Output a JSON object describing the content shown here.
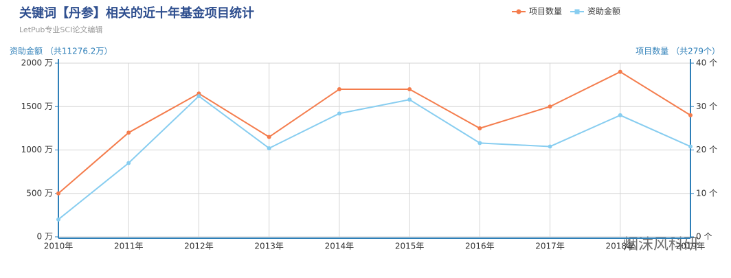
{
  "chart_data": {
    "type": "line",
    "title": "关键词【丹参】相关的近十年基金项目统计",
    "subtitle": "LetPub专业SCI论文编辑",
    "y_axis_label": "资助金额 （共11276.2万）",
    "y2_axis_label": "项目数量 （共279个）",
    "categories": [
      "2010年",
      "2011年",
      "2012年",
      "2013年",
      "2014年",
      "2015年",
      "2016年",
      "2017年",
      "2018年",
      "2019年"
    ],
    "series": [
      {
        "name": "项目数量",
        "color": "#f47c4c",
        "axis": "y2",
        "values": [
          10,
          24,
          33,
          23,
          34,
          34,
          25,
          30,
          38,
          28
        ]
      },
      {
        "name": "资助金额",
        "color": "#87cdf0",
        "values": [
          200,
          850,
          1620,
          1020,
          1420,
          1580,
          1080,
          1040,
          1400,
          1040
        ]
      }
    ],
    "ylim": [
      0,
      2000
    ],
    "yticks": [
      {
        "value": 0,
        "label": "0 万"
      },
      {
        "value": 500,
        "label": "500 万"
      },
      {
        "value": 1000,
        "label": "1000 万"
      },
      {
        "value": 1500,
        "label": "1500 万"
      },
      {
        "value": 2000,
        "label": "2000 万"
      }
    ],
    "y2lim": [
      0,
      40
    ],
    "y2ticks": [
      {
        "value": 0,
        "label": "0 个"
      },
      {
        "value": 10,
        "label": "10 个"
      },
      {
        "value": 20,
        "label": "20 个"
      },
      {
        "value": 30,
        "label": "30 个"
      },
      {
        "value": 40,
        "label": "40 个"
      }
    ],
    "grid": true,
    "legend": "top-right",
    "watermark": "烟沫风科研"
  }
}
